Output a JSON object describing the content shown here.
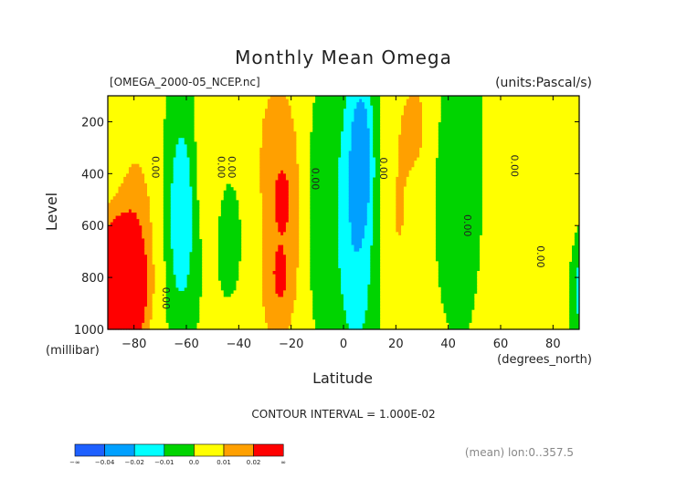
{
  "chart_data": {
    "type": "heatmap",
    "title": "Monthly Mean Omega",
    "file_label": "[OMEGA_2000-05_NCEP.nc]",
    "units_label": "(units:Pascal/s)",
    "xlabel": "Latitude",
    "xunit": "(degrees_north)",
    "ylabel": "Level",
    "yunit": "(millibar)",
    "xlim": [
      -90,
      90
    ],
    "ylim": [
      1000,
      100
    ],
    "x_ticks": [
      -80,
      -60,
      -40,
      -20,
      0,
      20,
      40,
      60,
      80
    ],
    "x_tick_labels": [
      "−80",
      "−60",
      "−40",
      "−20",
      "0",
      "20",
      "40",
      "60",
      "80"
    ],
    "y_ticks": [
      200,
      400,
      600,
      800,
      1000
    ],
    "y_tick_labels": [
      "200",
      "400",
      "600",
      "800",
      "1000"
    ],
    "contour_interval_text": "CONTOUR INTERVAL = 1.000E-02",
    "footer_text": "(mean) lon:0..357.5",
    "levels": [
      -0.04,
      -0.02,
      -0.01,
      0.0,
      0.01,
      0.02
    ],
    "level_labels": [
      "−∞",
      "−0.04",
      "−0.02",
      "−0.01",
      "0.0",
      "0.01",
      "0.02",
      "∞"
    ],
    "colors": [
      "#1e60ff",
      "#00a0ff",
      "#00ffff",
      "#00d400",
      "#ffff00",
      "#ffa000",
      "#ff0000"
    ],
    "contour_labels": [
      {
        "text": "0.00",
        "x": -73,
        "y": 375
      },
      {
        "text": "0.00",
        "x": -48,
        "y": 375
      },
      {
        "text": "0.00",
        "x": -44,
        "y": 375
      },
      {
        "text": "0.00",
        "x": -12,
        "y": 420
      },
      {
        "text": "0.00",
        "x": 14,
        "y": 380
      },
      {
        "text": "0.00",
        "x": 46,
        "y": 600
      },
      {
        "text": "0.00",
        "x": 64,
        "y": 370
      },
      {
        "text": "0.00",
        "x": 74,
        "y": 720
      },
      {
        "text": "0.00",
        "x": -69,
        "y": 880
      }
    ],
    "grid": false
  }
}
